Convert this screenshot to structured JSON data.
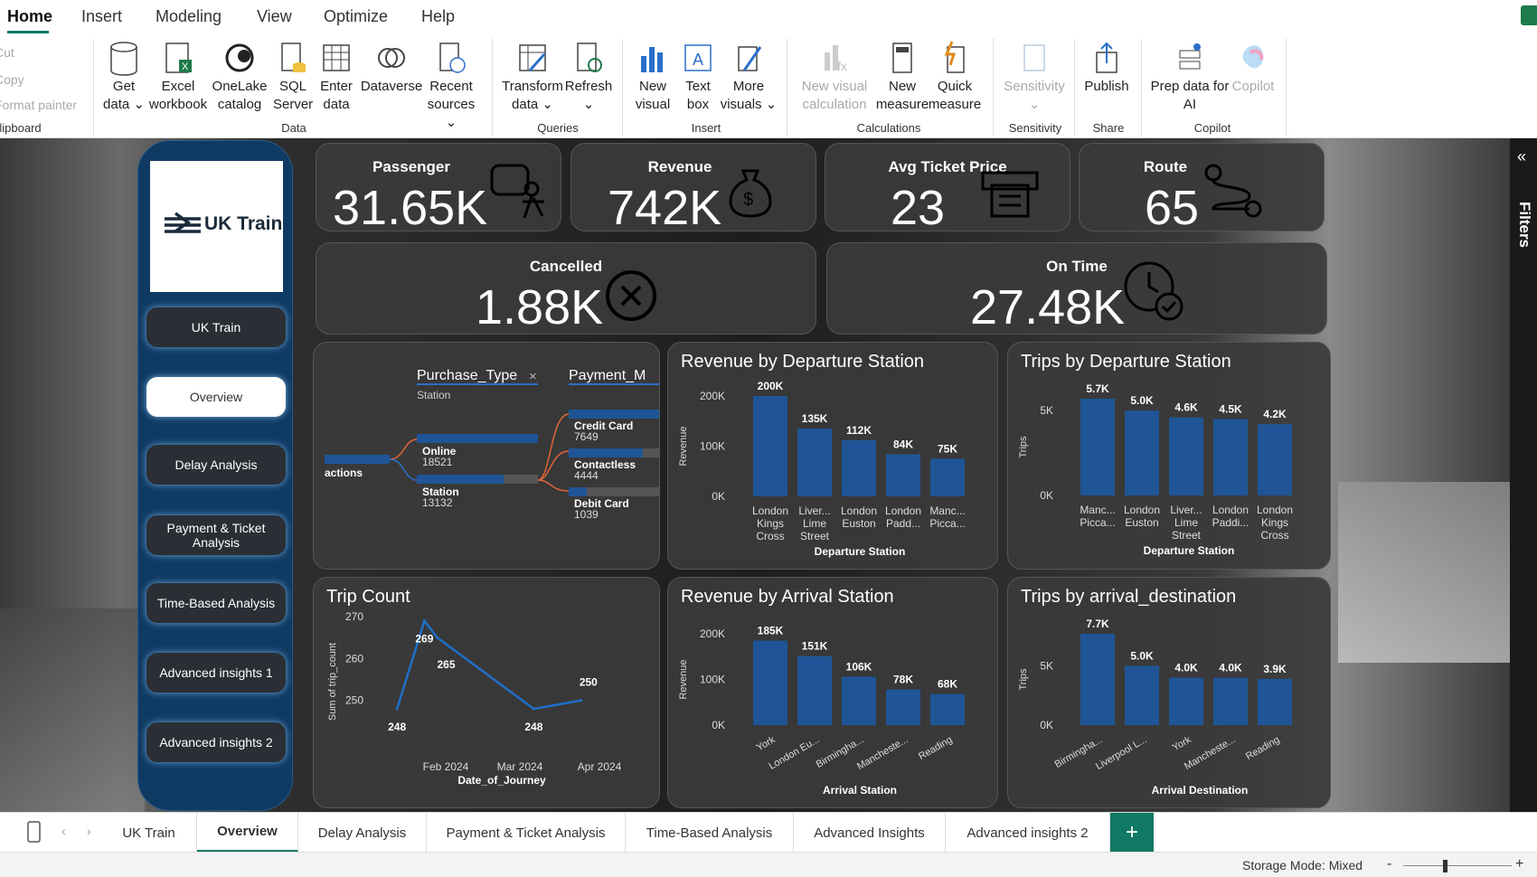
{
  "menu": {
    "home": "Home",
    "insert": "Insert",
    "modeling": "Modeling",
    "view": "View",
    "optimize": "Optimize",
    "help": "Help"
  },
  "clipboard": {
    "cut": "Cut",
    "copy": "Copy",
    "format_painter": "Format painter",
    "group": "Clipboard"
  },
  "ribbon": {
    "get_data": "Get data",
    "excel": "Excel workbook",
    "onelake": "OneLake catalog",
    "sql": "SQL Server",
    "enter_data": "Enter data",
    "dataverse": "Dataverse",
    "recent_sources": "Recent sources",
    "transform": "Transform data",
    "refresh": "Refresh",
    "new_visual": "New visual",
    "text_box": "Text box",
    "more_visuals": "More visuals",
    "new_visual_calc": "New visual calculation",
    "new_measure": "New measure",
    "quick_measure": "Quick measure",
    "sensitivity": "Sensitivity",
    "publish": "Publish",
    "prep_data": "Prep data for AI",
    "copilot": "Copilot",
    "groups": {
      "data": "Data",
      "queries": "Queries",
      "insert": "Insert",
      "calculations": "Calculations",
      "sensitivity": "Sensitivity",
      "share": "Share",
      "copilot": "Copilot"
    }
  },
  "filters_label": "Filters",
  "logo_text": "UK Train",
  "nav": [
    "UK Train",
    "Overview",
    "Delay Analysis",
    "Payment & Ticket Analysis",
    "Time-Based Analysis",
    "Advanced insights 1",
    "Advanced insights 2"
  ],
  "kpis": [
    {
      "label": "Passenger",
      "value": "31.65K"
    },
    {
      "label": "Revenue",
      "value": "742K"
    },
    {
      "label": "Avg Ticket Price",
      "value": "23"
    },
    {
      "label": "Route",
      "value": "65"
    },
    {
      "label": "Cancelled",
      "value": "1.88K"
    },
    {
      "label": "On Time",
      "value": "27.48K"
    }
  ],
  "decomp": {
    "header1": "Purchase_Type",
    "header1_sub": "Station",
    "header2": "Payment_M",
    "root": "actions",
    "level1": [
      {
        "label": "Online",
        "value": "18521"
      },
      {
        "label": "Station",
        "value": "13132"
      }
    ],
    "level2": [
      {
        "label": "Credit Card",
        "value": "7649"
      },
      {
        "label": "Contactless",
        "value": "4444"
      },
      {
        "label": "Debit Card",
        "value": "1039"
      }
    ]
  },
  "colors": {
    "bar": "#1f5596",
    "accent": "#117865",
    "card": "#3a3a3a",
    "line": "#1f6fc7"
  },
  "chart_data": [
    {
      "type": "bar",
      "title": "Revenue by Departure Station",
      "xlabel": "Departure Station",
      "ylabel": "Revenue",
      "ylim": [
        0,
        200000
      ],
      "yticks": [
        "0K",
        "100K",
        "200K"
      ],
      "categories": [
        "London Kings Cross",
        "Liver... Lime Street",
        "London Euston",
        "London Padd...",
        "Manc... Picca..."
      ],
      "values": [
        200000,
        135000,
        112000,
        84000,
        75000
      ],
      "labels": [
        "200K",
        "135K",
        "112K",
        "84K",
        "75K"
      ]
    },
    {
      "type": "bar",
      "title": "Trips by Departure Station",
      "xlabel": "Departure Station",
      "ylabel": "Trips",
      "ylim": [
        0,
        5700
      ],
      "yticks": [
        "0K",
        "5K"
      ],
      "categories": [
        "Manc... Picca...",
        "London Euston",
        "Liver... Lime Street",
        "London Paddi...",
        "London Kings Cross"
      ],
      "values": [
        5700,
        5000,
        4600,
        4500,
        4200
      ],
      "labels": [
        "5.7K",
        "5.0K",
        "4.6K",
        "4.5K",
        "4.2K"
      ]
    },
    {
      "type": "line",
      "title": "Trip Count",
      "xlabel": "Date_of_Journey",
      "ylabel": "Sum of trip_count",
      "ylim": [
        248,
        270
      ],
      "yticks": [
        "250",
        "260",
        "270"
      ],
      "xticks": [
        "Feb 2024",
        "Mar 2024",
        "Apr 2024"
      ],
      "points": [
        {
          "x": "2024-01",
          "y": 248
        },
        {
          "x": "2024-01-25",
          "y": 269
        },
        {
          "x": "2024-02-01",
          "y": 265
        },
        {
          "x": "2024-03-25",
          "y": 248
        },
        {
          "x": "2024-04-20",
          "y": 250
        }
      ],
      "labels": [
        "248",
        "269",
        "265",
        "248",
        "250"
      ]
    },
    {
      "type": "bar",
      "title": "Revenue by Arrival Station",
      "xlabel": "Arrival Station",
      "ylabel": "Revenue",
      "ylim": [
        0,
        200000
      ],
      "yticks": [
        "0K",
        "100K",
        "200K"
      ],
      "categories": [
        "York",
        "London Eu...",
        "Birmingha...",
        "Mancheste...",
        "Reading"
      ],
      "values": [
        185000,
        151000,
        106000,
        78000,
        68000
      ],
      "labels": [
        "185K",
        "151K",
        "106K",
        "78K",
        "68K"
      ]
    },
    {
      "type": "bar",
      "title": "Trips by arrival_destination",
      "xlabel": "Arrival Destination",
      "ylabel": "Trips",
      "ylim": [
        0,
        7700
      ],
      "yticks": [
        "0K",
        "5K"
      ],
      "categories": [
        "Birmingha...",
        "Liverpool L...",
        "York",
        "Mancheste...",
        "Reading"
      ],
      "values": [
        7700,
        5000,
        4000,
        4000,
        3900
      ],
      "labels": [
        "7.7K",
        "5.0K",
        "4.0K",
        "4.0K",
        "3.9K"
      ]
    }
  ],
  "tabs": [
    "UK Train",
    "Overview",
    "Delay Analysis",
    "Payment & Ticket Analysis",
    "Time-Based Analysis",
    "Advanced Insights",
    "Advanced insights 2"
  ],
  "status": "Storage Mode: Mixed"
}
